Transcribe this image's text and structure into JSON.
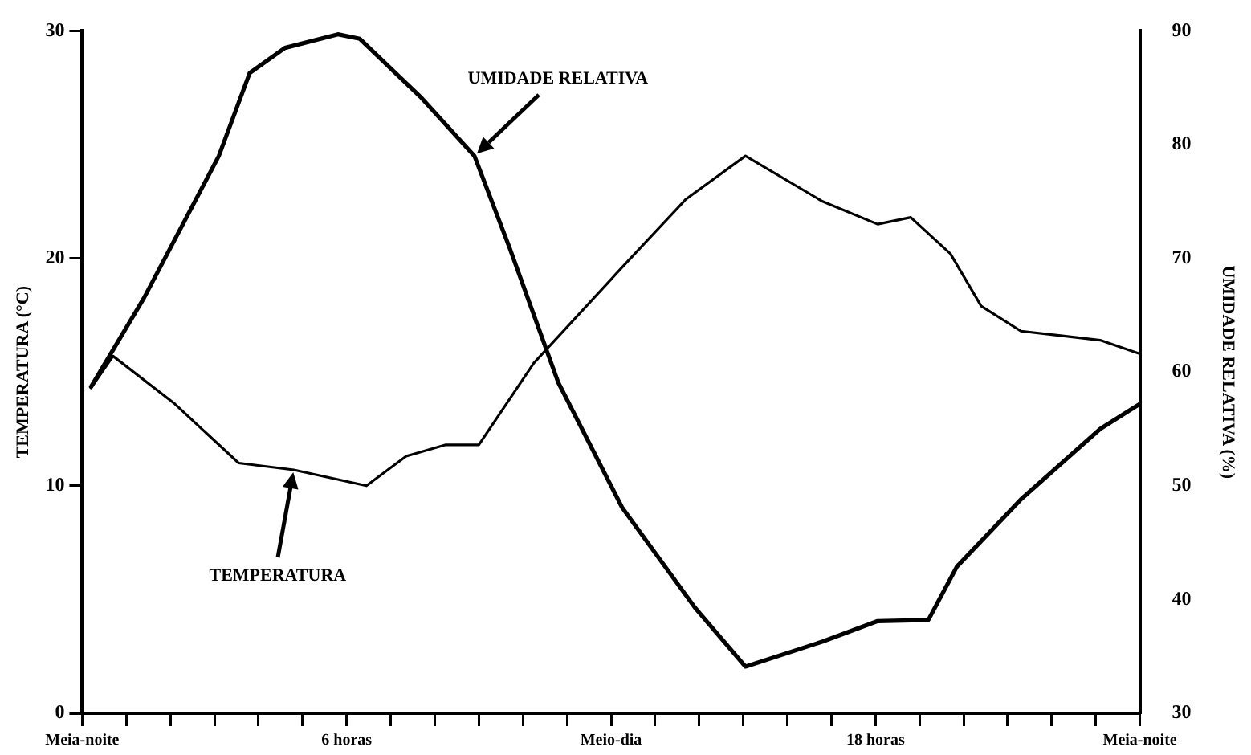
{
  "chart_data": {
    "type": "line",
    "ylabel": "TEMPERATURA (°C)",
    "y2label": "UMIDADE RELATIVA (%)",
    "xlim": [
      0,
      24
    ],
    "xticks": [
      {
        "value": 0,
        "label": "Meia-noite"
      },
      {
        "value": 1,
        "label": null
      },
      {
        "value": 2,
        "label": null
      },
      {
        "value": 3,
        "label": null
      },
      {
        "value": 4,
        "label": null
      },
      {
        "value": 5,
        "label": null
      },
      {
        "value": 6,
        "label": "6 horas"
      },
      {
        "value": 7,
        "label": null
      },
      {
        "value": 8,
        "label": null
      },
      {
        "value": 9,
        "label": null
      },
      {
        "value": 10,
        "label": null
      },
      {
        "value": 11,
        "label": null
      },
      {
        "value": 12,
        "label": "Meio-dia"
      },
      {
        "value": 13,
        "label": null
      },
      {
        "value": 14,
        "label": null
      },
      {
        "value": 15,
        "label": null
      },
      {
        "value": 16,
        "label": null
      },
      {
        "value": 17,
        "label": null
      },
      {
        "value": 18,
        "label": "18 horas"
      },
      {
        "value": 19,
        "label": null
      },
      {
        "value": 20,
        "label": null
      },
      {
        "value": 21,
        "label": null
      },
      {
        "value": 22,
        "label": null
      },
      {
        "value": 23,
        "label": null
      },
      {
        "value": 24,
        "label": "Meia-noite"
      }
    ],
    "ylim": [
      0,
      30
    ],
    "yticks": [
      0,
      10,
      20,
      30
    ],
    "y2lim": [
      30,
      90
    ],
    "y2ticks": [
      30,
      40,
      50,
      60,
      70,
      80,
      90
    ],
    "grid": false,
    "marker": "none",
    "line_style": "solid",
    "series": [
      {
        "name": "TEMPERATURA",
        "color": "#000000",
        "x": [
          0.2,
          0.7,
          2.1,
          3.55,
          4.8,
          6.45,
          7.35,
          8.25,
          9.0,
          10.25,
          12.25,
          13.7,
          15.05,
          16.8,
          18.05,
          18.8,
          19.7,
          20.4,
          21.3,
          22.2,
          23.1,
          24
        ],
        "values": [
          14.3,
          15.7,
          13.6,
          11.0,
          10.7,
          10.0,
          11.3,
          11.8,
          11.8,
          15.4,
          19.6,
          22.6,
          24.5,
          22.5,
          21.5,
          21.8,
          20.2,
          17.9,
          16.8,
          16.6,
          16.4,
          15.8
        ]
      },
      {
        "name": "UMIDADE RELATIVA",
        "color": "#000000",
        "axis": "y2",
        "x": [
          0.2,
          1.4,
          3.1,
          3.8,
          4.6,
          5.8,
          6.3,
          7.7,
          8.9,
          9.7,
          10.25,
          10.8,
          12.25,
          13.9,
          15.05,
          16.8,
          18.05,
          19.2,
          19.85,
          21.3,
          23.1,
          24
        ],
        "values": [
          58.7,
          66.5,
          79.0,
          86.3,
          88.5,
          89.7,
          89.3,
          84.1,
          79.0,
          70.9,
          65.0,
          59.1,
          48.1,
          39.3,
          34.1,
          36.3,
          38.1,
          38.2,
          42.9,
          48.8,
          55.0,
          57.2
        ]
      }
    ]
  }
}
